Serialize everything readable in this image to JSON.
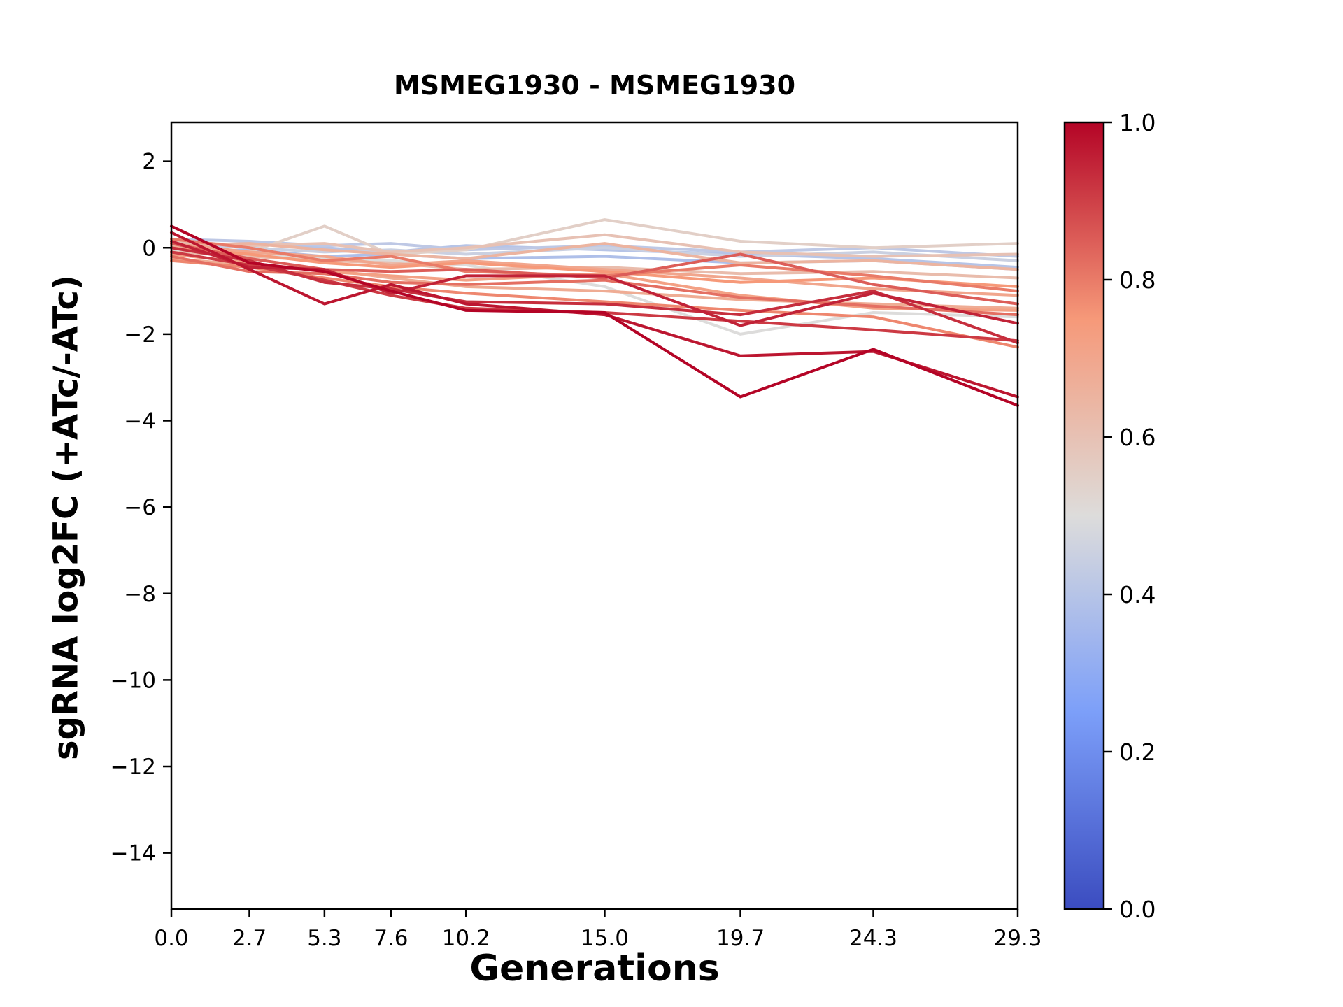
{
  "title": "MSMEG1930 - MSMEG1930",
  "chart_data": {
    "type": "line",
    "title": "MSMEG1930 - MSMEG1930",
    "xlabel": "Generations",
    "ylabel": "sgRNA log2FC (+ATc/-ATc)",
    "x": [
      0.0,
      2.7,
      5.3,
      7.6,
      10.2,
      15.0,
      19.7,
      24.3,
      29.3
    ],
    "x_tick_labels": [
      "0.0",
      "2.7",
      "5.3",
      "7.6",
      "10.2",
      "15.0",
      "19.7",
      "24.3",
      "29.3"
    ],
    "y_ticks": [
      2,
      0,
      -2,
      -4,
      -6,
      -8,
      -10,
      -12,
      -14
    ],
    "xlim": [
      0.0,
      29.3
    ],
    "ylim": [
      -15.3,
      2.9
    ],
    "grid": false,
    "legend": "none",
    "colormap": "coolwarm",
    "colorbar": {
      "min": 0.0,
      "max": 1.0,
      "tick_labels": [
        "1.0",
        "0.8",
        "0.6",
        "0.4",
        "0.2",
        "0.0"
      ]
    },
    "series": [
      {
        "color_value": 1.0,
        "values": [
          0.5,
          -0.35,
          -0.55,
          -1.0,
          -1.45,
          -1.5,
          -3.45,
          -2.35,
          -3.65
        ]
      },
      {
        "color_value": 0.97,
        "values": [
          0.35,
          -0.5,
          -1.3,
          -0.85,
          -1.3,
          -1.55,
          -2.5,
          -2.4,
          -3.45
        ]
      },
      {
        "color_value": 0.95,
        "values": [
          0.15,
          -0.45,
          -0.5,
          -1.05,
          -0.65,
          -0.65,
          -1.8,
          -1.05,
          -1.75
        ]
      },
      {
        "color_value": 0.93,
        "values": [
          0.0,
          -0.3,
          -0.8,
          -0.95,
          -1.25,
          -1.3,
          -1.55,
          -1.0,
          -2.2
        ]
      },
      {
        "color_value": 0.91,
        "values": [
          -0.1,
          -0.4,
          -0.75,
          -1.1,
          -1.4,
          -1.5,
          -1.7,
          -1.9,
          -2.15
        ]
      },
      {
        "color_value": 0.85,
        "values": [
          0.1,
          -0.25,
          -0.5,
          -0.55,
          -0.5,
          -0.7,
          -0.15,
          -0.85,
          -1.3
        ]
      },
      {
        "color_value": 0.82,
        "values": [
          -0.2,
          -0.55,
          -0.6,
          -0.8,
          -0.85,
          -0.75,
          -1.15,
          -1.35,
          -1.55
        ]
      },
      {
        "color_value": 0.8,
        "values": [
          0.2,
          0.0,
          -0.3,
          -0.2,
          -0.55,
          -0.65,
          -0.4,
          -0.65,
          -1.0
        ]
      },
      {
        "color_value": 0.78,
        "values": [
          -0.3,
          -0.45,
          -0.7,
          -0.9,
          -1.05,
          -1.25,
          -1.45,
          -1.6,
          -2.3
        ]
      },
      {
        "color_value": 0.75,
        "values": [
          0.0,
          -0.15,
          -0.35,
          -0.45,
          -0.35,
          -0.55,
          -0.8,
          -0.7,
          -0.9
        ]
      },
      {
        "color_value": 0.72,
        "values": [
          -0.15,
          -0.35,
          -0.55,
          -0.65,
          -0.75,
          -0.6,
          -1.1,
          -1.4,
          -1.45
        ]
      },
      {
        "color_value": 0.7,
        "values": [
          0.1,
          -0.1,
          -0.2,
          -0.4,
          -0.3,
          -0.5,
          -0.7,
          -0.95,
          -1.1
        ]
      },
      {
        "color_value": 0.68,
        "values": [
          -0.25,
          -0.4,
          -0.5,
          -0.7,
          -0.9,
          -1.0,
          -1.2,
          -1.3,
          -1.4
        ]
      },
      {
        "color_value": 0.65,
        "values": [
          0.05,
          0.1,
          -0.05,
          -0.15,
          -0.25,
          0.1,
          -0.35,
          -0.3,
          -0.5
        ]
      },
      {
        "color_value": 0.62,
        "values": [
          -0.1,
          -0.2,
          -0.3,
          -0.35,
          -0.5,
          -0.45,
          -0.6,
          -0.55,
          -0.7
        ]
      },
      {
        "color_value": 0.6,
        "values": [
          0.15,
          0.05,
          0.1,
          -0.1,
          0.0,
          0.3,
          -0.1,
          -0.2,
          -0.15
        ]
      },
      {
        "color_value": 0.55,
        "values": [
          0.0,
          -0.1,
          0.5,
          -0.15,
          -0.05,
          0.65,
          0.15,
          0.0,
          0.1
        ]
      },
      {
        "color_value": 0.5,
        "values": [
          -0.05,
          -0.15,
          -0.25,
          -0.3,
          -0.4,
          -0.9,
          -2.0,
          -1.5,
          -1.6
        ]
      },
      {
        "color_value": 0.45,
        "values": [
          0.1,
          0.0,
          -0.1,
          -0.05,
          -0.15,
          0.0,
          -0.2,
          -0.1,
          -0.3
        ]
      },
      {
        "color_value": 0.42,
        "values": [
          0.2,
          0.15,
          0.05,
          0.1,
          -0.05,
          0.05,
          -0.1,
          0.0,
          -0.2
        ]
      },
      {
        "color_value": 0.4,
        "values": [
          0.0,
          0.1,
          0.0,
          -0.1,
          0.05,
          -0.05,
          -0.15,
          -0.25,
          -0.45
        ]
      },
      {
        "color_value": 0.38,
        "values": [
          -0.1,
          -0.05,
          -0.2,
          -0.15,
          -0.25,
          -0.2,
          -0.35,
          -0.3,
          -0.5
        ]
      }
    ]
  }
}
